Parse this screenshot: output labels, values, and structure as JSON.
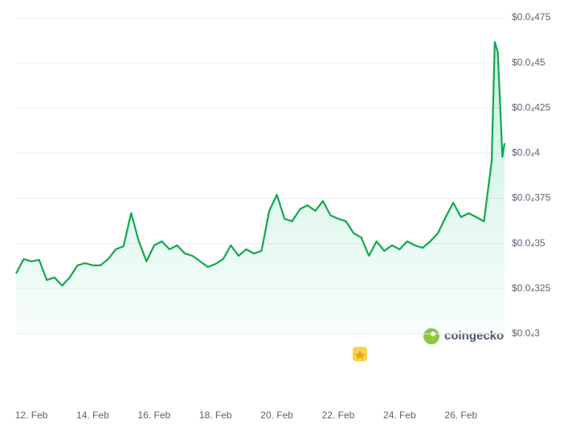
{
  "chart_data": {
    "type": "line",
    "x": [
      11.5,
      11.75,
      12,
      12.25,
      12.5,
      12.75,
      13,
      13.25,
      13.5,
      13.75,
      14,
      14.25,
      14.5,
      14.75,
      15,
      15.25,
      15.5,
      15.75,
      16,
      16.25,
      16.5,
      16.75,
      17,
      17.25,
      17.5,
      17.75,
      18,
      18.25,
      18.5,
      18.75,
      19,
      19.25,
      19.5,
      19.75,
      20,
      20.25,
      20.5,
      20.75,
      21,
      21.25,
      21.5,
      21.75,
      22,
      22.25,
      22.5,
      22.75,
      23,
      23.25,
      23.5,
      23.75,
      24,
      24.25,
      24.5,
      24.75,
      25,
      25.25,
      25.5,
      25.75,
      26,
      26.25,
      26.5,
      26.75,
      27,
      27.1,
      27.2,
      27.3,
      27.35,
      27.42
    ],
    "series": [
      {
        "color": "#0fa84e",
        "values": [
          3.334e-05,
          3.414e-05,
          3.401e-05,
          3.41e-05,
          3.298e-05,
          3.312e-05,
          3.267e-05,
          3.312e-05,
          3.379e-05,
          3.392e-05,
          3.379e-05,
          3.379e-05,
          3.414e-05,
          3.468e-05,
          3.485e-05,
          3.668e-05,
          3.512e-05,
          3.401e-05,
          3.49e-05,
          3.512e-05,
          3.468e-05,
          3.49e-05,
          3.445e-05,
          3.432e-05,
          3.401e-05,
          3.37e-05,
          3.387e-05,
          3.414e-05,
          3.49e-05,
          3.432e-05,
          3.468e-05,
          3.445e-05,
          3.459e-05,
          3.681e-05,
          3.77e-05,
          3.637e-05,
          3.623e-05,
          3.69e-05,
          3.712e-05,
          3.681e-05,
          3.735e-05,
          3.655e-05,
          3.637e-05,
          3.623e-05,
          3.557e-05,
          3.534e-05,
          3.432e-05,
          3.512e-05,
          3.459e-05,
          3.49e-05,
          3.468e-05,
          3.512e-05,
          3.49e-05,
          3.476e-05,
          3.512e-05,
          3.557e-05,
          3.646e-05,
          3.726e-05,
          3.646e-05,
          3.668e-05,
          3.646e-05,
          3.623e-05,
          3.957e-05,
          4.616e-05,
          4.559e-05,
          4.18e-05,
          3.98e-05,
          4.055e-05
        ]
      }
    ],
    "xlim": [
      11.5,
      27.42
    ],
    "xticks": [
      {
        "value": 12,
        "label": "12. Feb"
      },
      {
        "value": 14,
        "label": "14. Feb"
      },
      {
        "value": 16,
        "label": "16. Feb"
      },
      {
        "value": 18,
        "label": "18. Feb"
      },
      {
        "value": 20,
        "label": "20. Feb"
      },
      {
        "value": 22,
        "label": "22. Feb"
      },
      {
        "value": 24,
        "label": "24. Feb"
      },
      {
        "value": 26,
        "label": "26. Feb"
      }
    ],
    "ylim": [
      3e-05,
      4.75e-05
    ],
    "yticks": [
      {
        "value": 3e-05,
        "label": "$0.0₄3"
      },
      {
        "value": 3.25e-05,
        "label": "$0.0₄325"
      },
      {
        "value": 3.5e-05,
        "label": "$0.0₄35"
      },
      {
        "value": 3.75e-05,
        "label": "$0.0₄375"
      },
      {
        "value": 4e-05,
        "label": "$0.0₄4"
      },
      {
        "value": 4.25e-05,
        "label": "$0.0₄425"
      },
      {
        "value": 4.5e-05,
        "label": "$0.0₄45"
      },
      {
        "value": 4.75e-05,
        "label": "$0.0₄475"
      }
    ],
    "grid": true,
    "watermark": "coingecko"
  }
}
